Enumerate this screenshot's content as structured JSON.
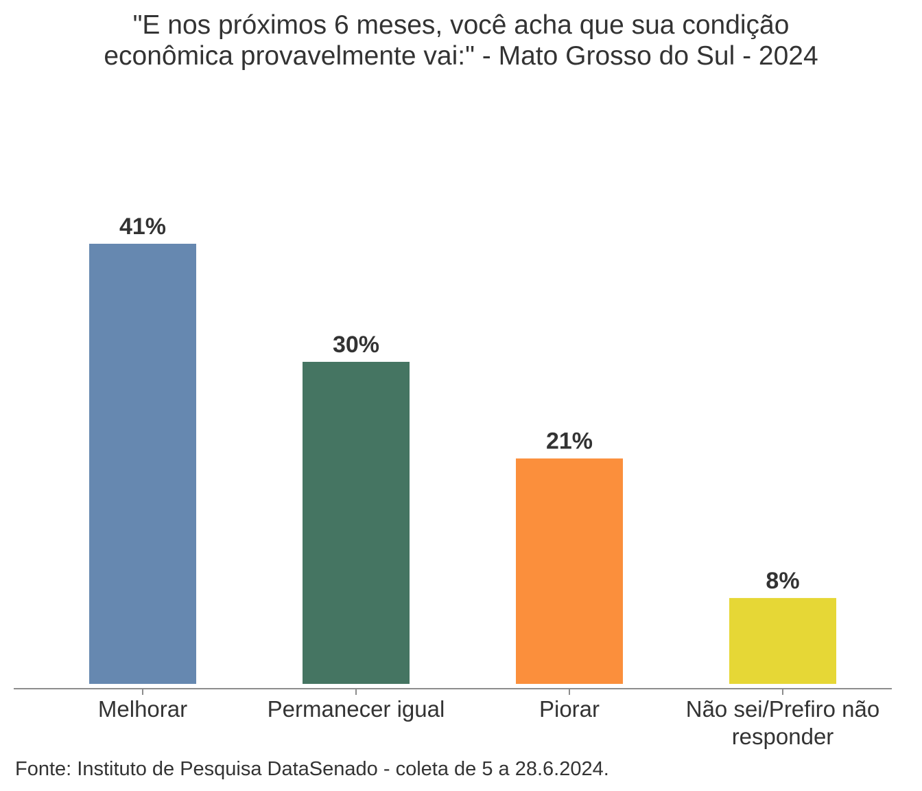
{
  "title_lines": [
    "\"E nos próximos 6 meses, você acha que sua condição",
    "econômica provavelmente vai:\" - Mato Grosso do Sul - 2024"
  ],
  "source": "Fonte: Instituto de Pesquisa DataSenado - coleta de 5 a 28.6.2024.",
  "chart_data": {
    "type": "bar",
    "categories": [
      "Melhorar",
      "Permanecer igual",
      "Piorar",
      "Não sei/Prefiro não responder"
    ],
    "category_lines": [
      [
        "Melhorar"
      ],
      [
        "Permanecer igual"
      ],
      [
        "Piorar"
      ],
      [
        "Não sei/Prefiro não",
        "responder"
      ]
    ],
    "values": [
      41,
      30,
      21,
      8
    ],
    "value_labels": [
      "41%",
      "30%",
      "21%",
      "8%"
    ],
    "colors": [
      "#6688b0",
      "#457562",
      "#fb8f3c",
      "#e6d736"
    ],
    "ylim": [
      0,
      41
    ],
    "grid": false,
    "legend": "none"
  }
}
